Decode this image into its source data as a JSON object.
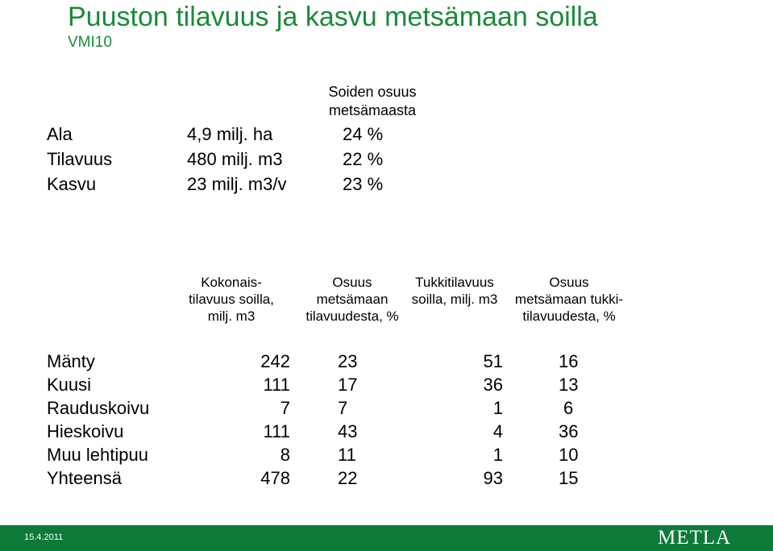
{
  "title": "Puuston tilavuus ja kasvu metsämaan soilla",
  "subtitle": "VMI10",
  "summary": {
    "header_line1": "Soiden osuus",
    "header_line2": "metsämaasta",
    "rows": [
      {
        "label": "Ala",
        "value": "4,9 milj. ha",
        "share": "24 %"
      },
      {
        "label": "Tilavuus",
        "value": "480 milj. m3",
        "share": "22 %"
      },
      {
        "label": "Kasvu",
        "value": "23 milj. m3/v",
        "share": "23 %"
      }
    ]
  },
  "table": {
    "headers": [
      [
        "Kokonais-",
        "tilavuus soilla,",
        "milj. m3"
      ],
      [
        "Osuus",
        "metsämaan",
        "tilavuudesta, %"
      ],
      [
        "Tukkitilavuus",
        "soilla, milj. m3",
        ""
      ],
      [
        "Osuus",
        "metsämaan tukki-",
        "tilavuudesta, %"
      ]
    ],
    "rows": [
      {
        "species": "Mänty",
        "total": "242",
        "share": "23",
        "log": "51",
        "log_share": "16"
      },
      {
        "species": "Kuusi",
        "total": "111",
        "share": "17",
        "log": "36",
        "log_share": "13"
      },
      {
        "species": "Rauduskoivu",
        "total": "7",
        "share": "7",
        "log": "1",
        "log_share": "6"
      },
      {
        "species": "Hieskoivu",
        "total": "111",
        "share": "43",
        "log": "4",
        "log_share": "36"
      },
      {
        "species": "Muu lehtipuu",
        "total": "8",
        "share": "11",
        "log": "1",
        "log_share": "10"
      },
      {
        "species": "Yhteensä",
        "total": "478",
        "share": "22",
        "log": "93",
        "log_share": "15"
      }
    ]
  },
  "footer": {
    "date": "15.4.2011",
    "logo_text": "METLA",
    "background_color": "#0d7a3a"
  }
}
